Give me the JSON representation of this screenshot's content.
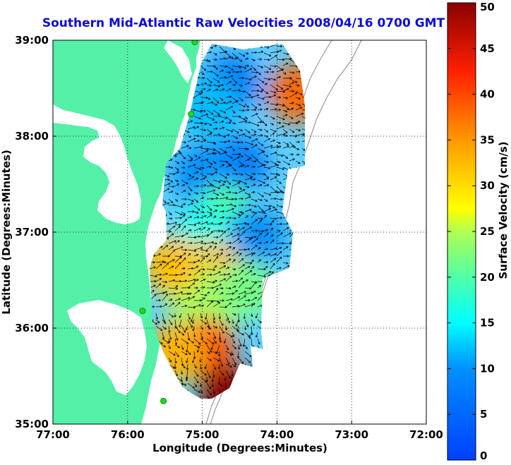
{
  "title": "Southern Mid-Atlantic Raw Velocities 2008/04/16 0700 GMT",
  "xlabel": "Longitude (Degrees:Minutes)",
  "ylabel": "Latitude (Degrees:Minutes)",
  "colorbar": {
    "label": "Surface Velocity (cm/s)",
    "ticks": [
      "0",
      "5",
      "10",
      "15",
      "20",
      "25",
      "30",
      "35",
      "40",
      "45",
      "50"
    ],
    "range": [
      0,
      50
    ],
    "colormap": "jet"
  },
  "map": {
    "x_ticks": [
      "77:00",
      "76:00",
      "75:00",
      "74:00",
      "73:00",
      "72:00"
    ],
    "y_ticks": [
      "39:00",
      "38:00",
      "37:00",
      "36:00",
      "35:00"
    ],
    "lon_range": [
      -77,
      -72
    ],
    "lat_range": [
      35,
      39
    ],
    "grid": "dotted",
    "land_color": "#55f0a8",
    "station_color": "#22d822"
  },
  "chart_data": {
    "type": "heatmap",
    "title": "Southern Mid-Atlantic Raw Velocities 2008/04/16 0700 GMT",
    "xlabel": "Longitude (Degrees:Minutes)",
    "ylabel": "Latitude (Degrees:Minutes)",
    "zlabel": "Surface Velocity (cm/s)",
    "xlim": [
      -77,
      -72
    ],
    "ylim": [
      35,
      39
    ],
    "zlim": [
      0,
      50
    ],
    "speed_zones": [
      {
        "lon": -74.6,
        "lat": 38.55,
        "speed": 8
      },
      {
        "lon": -74.9,
        "lat": 38.3,
        "speed": 12
      },
      {
        "lon": -74.5,
        "lat": 37.7,
        "speed": 8
      },
      {
        "lon": -75.0,
        "lat": 37.6,
        "speed": 10
      },
      {
        "lon": -74.7,
        "lat": 37.2,
        "speed": 20
      },
      {
        "lon": -74.3,
        "lat": 36.95,
        "speed": 10
      },
      {
        "lon": -75.0,
        "lat": 36.95,
        "speed": 16
      },
      {
        "lon": -74.85,
        "lat": 36.6,
        "speed": 33
      },
      {
        "lon": -75.2,
        "lat": 36.5,
        "speed": 24
      },
      {
        "lon": -74.4,
        "lat": 36.4,
        "speed": 22
      },
      {
        "lon": -75.0,
        "lat": 36.1,
        "speed": 24
      },
      {
        "lon": -74.95,
        "lat": 35.8,
        "speed": 40
      },
      {
        "lon": -75.35,
        "lat": 35.75,
        "speed": 33
      },
      {
        "lon": -74.65,
        "lat": 35.3,
        "speed": 50
      },
      {
        "lon": -73.72,
        "lat": 38.45,
        "speed": 38
      },
      {
        "lon": -75.4,
        "lat": 36.65,
        "speed": 32
      }
    ]
  },
  "stations": [
    {
      "lon": -75.1,
      "lat": 38.98
    },
    {
      "lon": -75.15,
      "lat": 38.23
    },
    {
      "lon": -75.8,
      "lat": 36.18
    },
    {
      "lon": -75.52,
      "lat": 35.24
    }
  ]
}
